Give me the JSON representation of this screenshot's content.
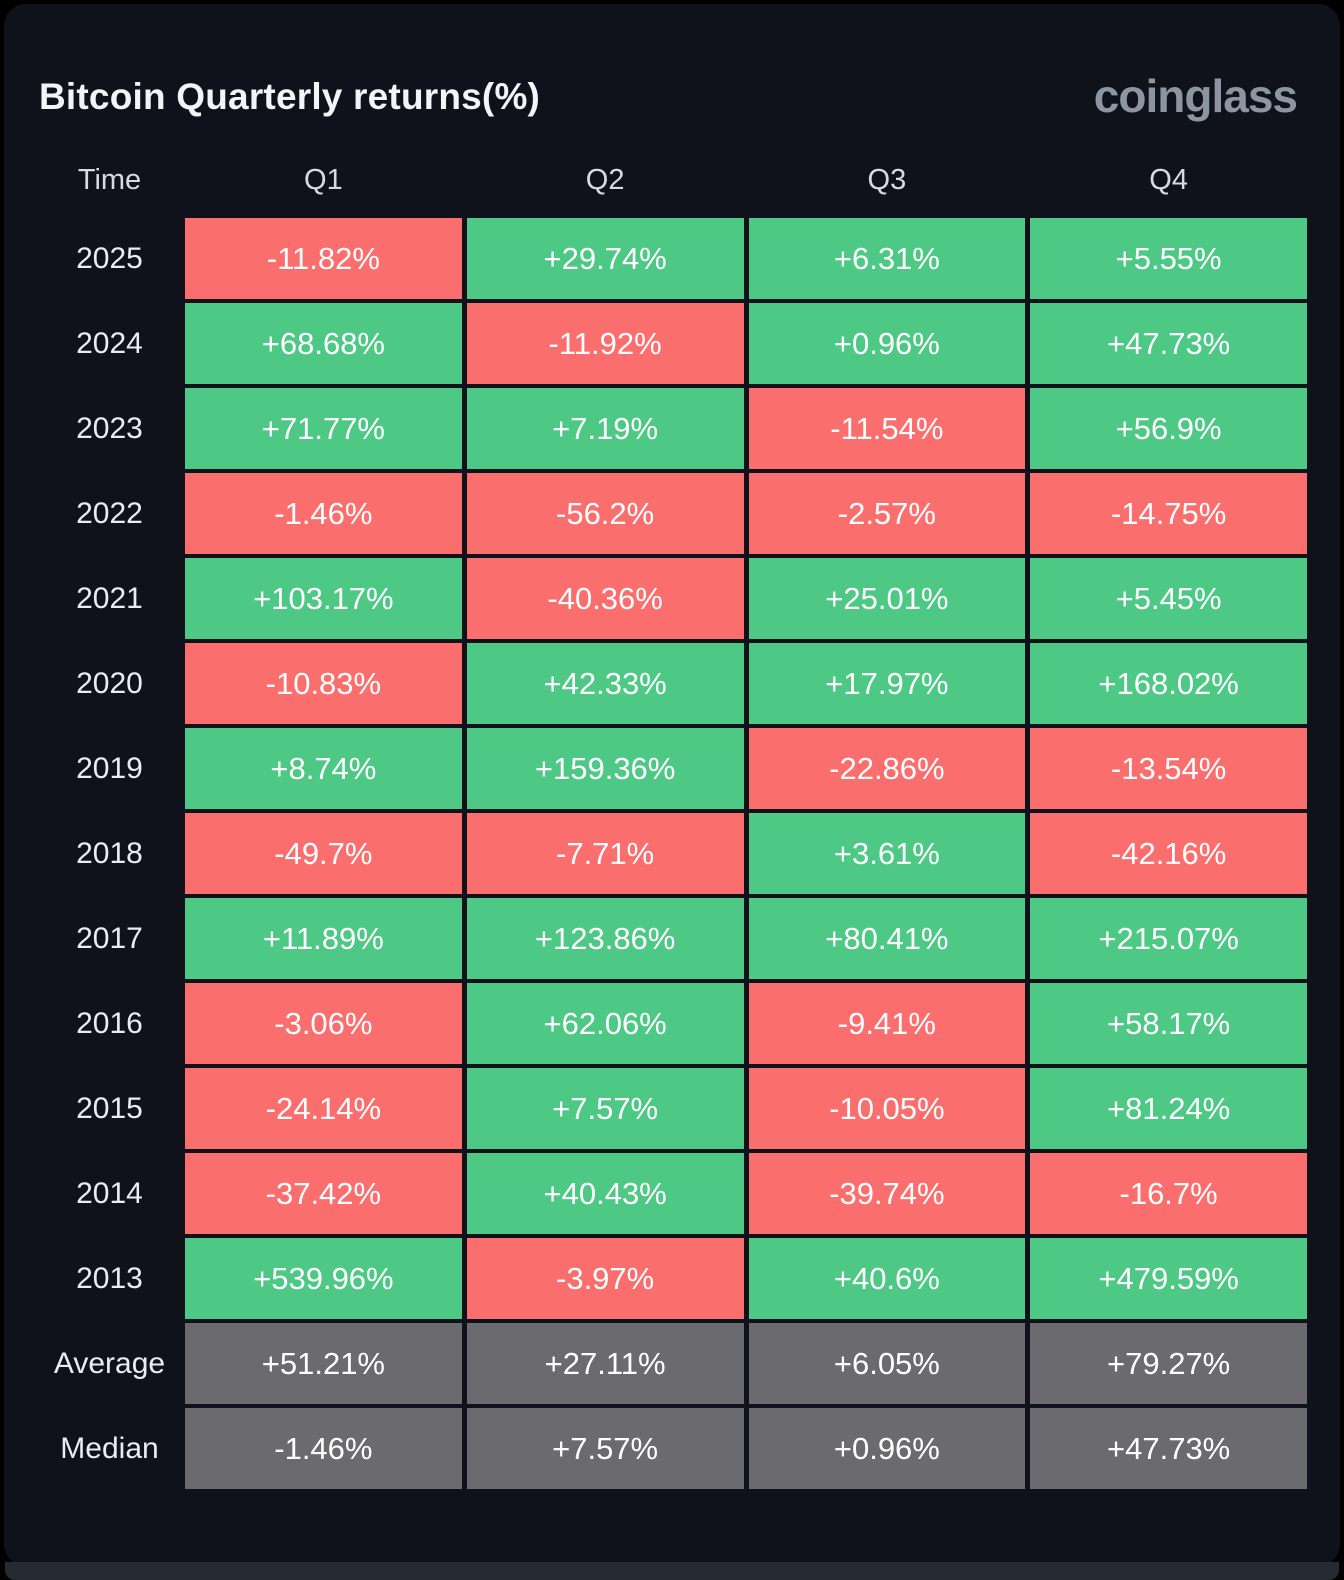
{
  "header": {
    "title": "Bitcoin Quarterly returns(%)",
    "logo": "coinglass"
  },
  "colors": {
    "positive": "#4ec985",
    "negative": "#fa6e6e",
    "summary": "#6b6b6f",
    "panel_background": "#0f121a",
    "cell_text": "#ffffff",
    "label_text": "#e9edf2",
    "logo_text": "#8c95a2"
  },
  "chart_data": {
    "type": "heatmap",
    "title": "Bitcoin Quarterly returns(%)",
    "columns": [
      "Time",
      "Q1",
      "Q2",
      "Q3",
      "Q4"
    ],
    "rows": [
      {
        "label": "2025",
        "kind": "year",
        "values": [
          "-11.82%",
          "+29.74%",
          "+6.31%",
          "+5.55%"
        ]
      },
      {
        "label": "2024",
        "kind": "year",
        "values": [
          "+68.68%",
          "-11.92%",
          "+0.96%",
          "+47.73%"
        ]
      },
      {
        "label": "2023",
        "kind": "year",
        "values": [
          "+71.77%",
          "+7.19%",
          "-11.54%",
          "+56.9%"
        ]
      },
      {
        "label": "2022",
        "kind": "year",
        "values": [
          "-1.46%",
          "-56.2%",
          "-2.57%",
          "-14.75%"
        ]
      },
      {
        "label": "2021",
        "kind": "year",
        "values": [
          "+103.17%",
          "-40.36%",
          "+25.01%",
          "+5.45%"
        ]
      },
      {
        "label": "2020",
        "kind": "year",
        "values": [
          "-10.83%",
          "+42.33%",
          "+17.97%",
          "+168.02%"
        ]
      },
      {
        "label": "2019",
        "kind": "year",
        "values": [
          "+8.74%",
          "+159.36%",
          "-22.86%",
          "-13.54%"
        ]
      },
      {
        "label": "2018",
        "kind": "year",
        "values": [
          "-49.7%",
          "-7.71%",
          "+3.61%",
          "-42.16%"
        ]
      },
      {
        "label": "2017",
        "kind": "year",
        "values": [
          "+11.89%",
          "+123.86%",
          "+80.41%",
          "+215.07%"
        ]
      },
      {
        "label": "2016",
        "kind": "year",
        "values": [
          "-3.06%",
          "+62.06%",
          "-9.41%",
          "+58.17%"
        ]
      },
      {
        "label": "2015",
        "kind": "year",
        "values": [
          "-24.14%",
          "+7.57%",
          "-10.05%",
          "+81.24%"
        ]
      },
      {
        "label": "2014",
        "kind": "year",
        "values": [
          "-37.42%",
          "+40.43%",
          "-39.74%",
          "-16.7%"
        ]
      },
      {
        "label": "2013",
        "kind": "year",
        "values": [
          "+539.96%",
          "-3.97%",
          "+40.6%",
          "+479.59%"
        ]
      },
      {
        "label": "Average",
        "kind": "summary",
        "values": [
          "+51.21%",
          "+27.11%",
          "+6.05%",
          "+79.27%"
        ]
      },
      {
        "label": "Median",
        "kind": "summary",
        "values": [
          "-1.46%",
          "+7.57%",
          "+0.96%",
          "+47.73%"
        ]
      }
    ]
  }
}
